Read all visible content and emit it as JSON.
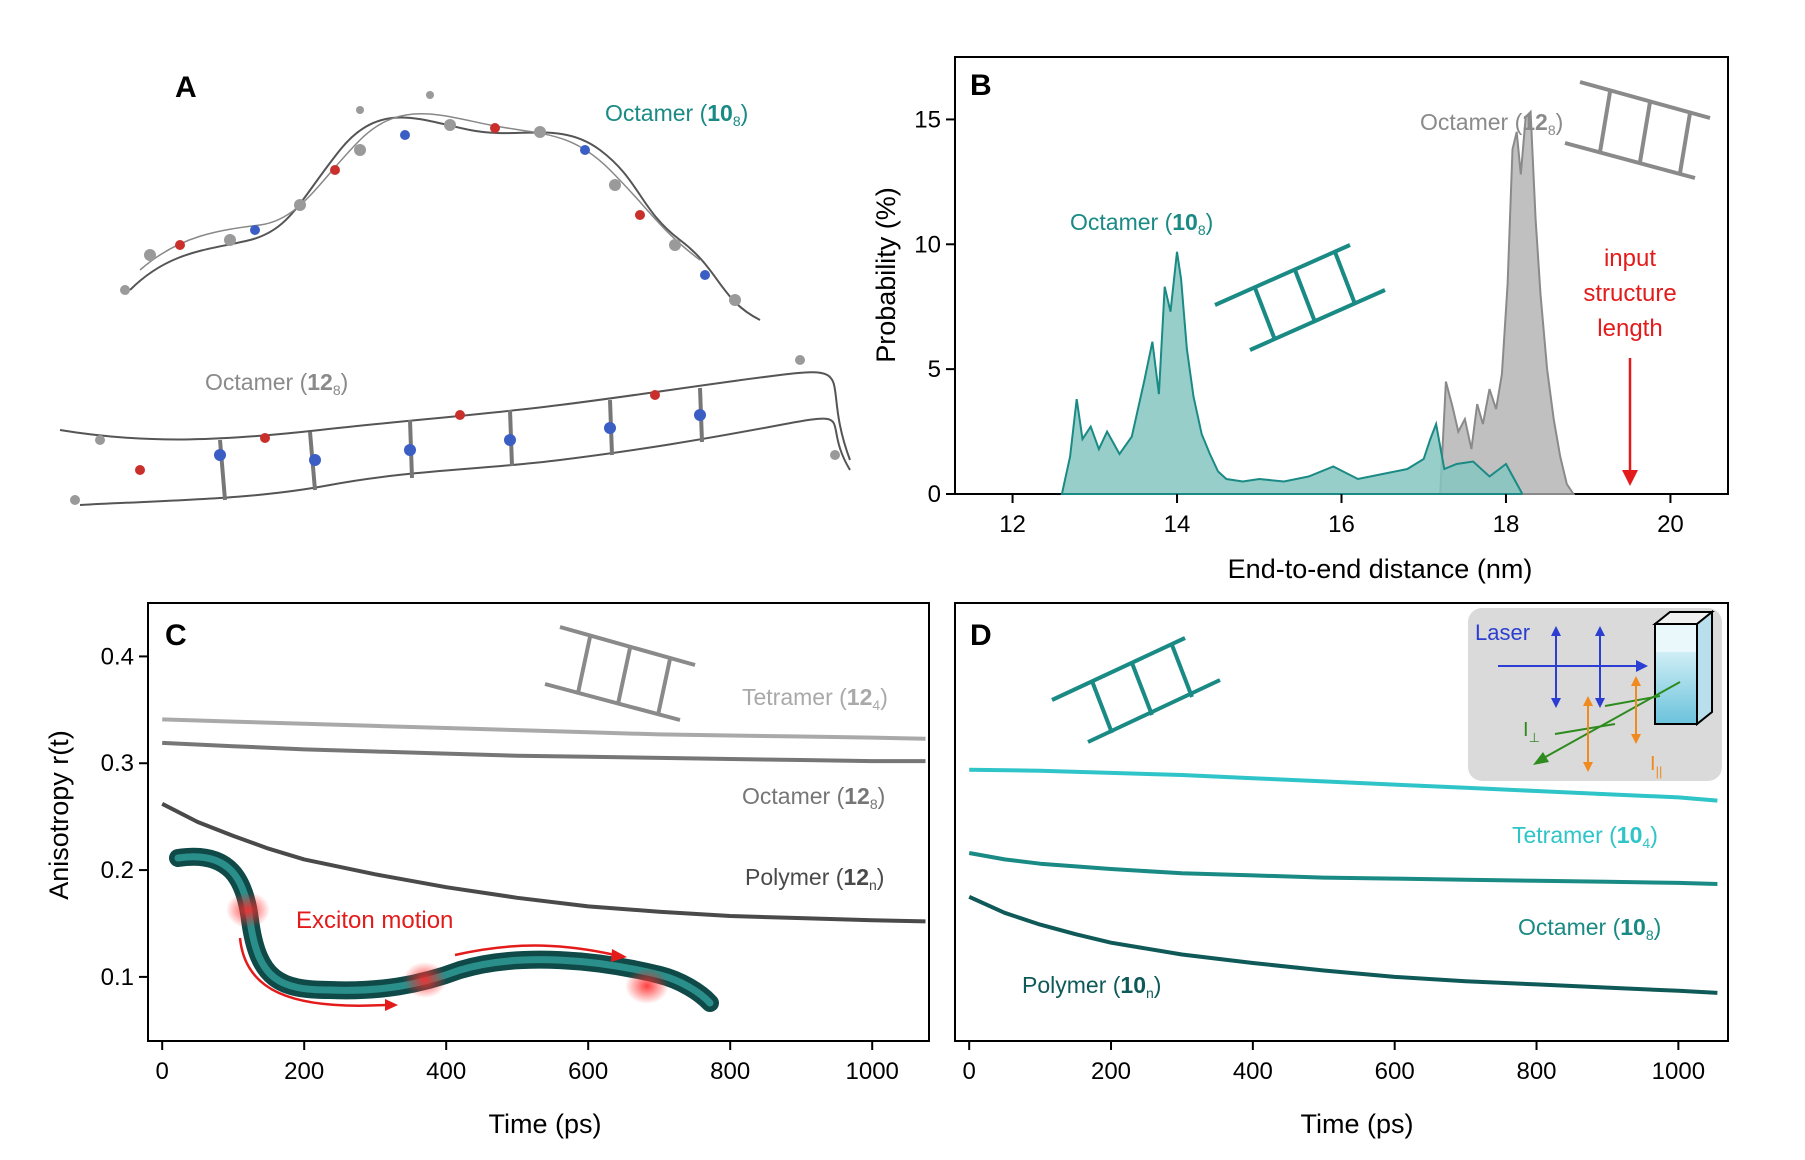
{
  "figure": {
    "panels": {
      "A": "A",
      "B": "B",
      "C": "C",
      "D": "D"
    }
  },
  "colors": {
    "teal": "#1a8a85",
    "teal_fill": "#86c6c0",
    "cyan": "#2ec4c8",
    "dark_teal": "#0f5a58",
    "gray": "#8a8a8a",
    "gray_fill": "#b5b5b5",
    "light_gray": "#a9a9a9",
    "mid_gray": "#767676",
    "dark_gray": "#4a4a4a",
    "red": "#e31b1b",
    "blue": "#2b3ed1",
    "orange": "#f08a1e",
    "green": "#2e8b1e",
    "inset_bg": "#dadada"
  },
  "panel_a": {
    "label_10": {
      "prefix": "Octamer (",
      "bold": "10",
      "sub": "8",
      "suffix": ")"
    },
    "label_12": {
      "prefix": "Octamer (",
      "bold": "12",
      "sub": "8",
      "suffix": ")"
    },
    "molecule_icons": [
      "molecular-structure-10-8",
      "molecular-structure-12-8"
    ]
  },
  "chart_data": [
    {
      "panel": "B",
      "type": "area",
      "xlabel": "End-to-end distance (nm)",
      "ylabel": "Probability (%)",
      "xlim": [
        11.3,
        20.7
      ],
      "ylim": [
        0,
        17.5
      ],
      "xticks": [
        12,
        14,
        16,
        18,
        20
      ],
      "yticks": [
        0,
        5,
        10,
        15
      ],
      "series": [
        {
          "name": "Octamer (10_8)",
          "label": {
            "prefix": "Octamer (",
            "bold": "10",
            "sub": "8",
            "suffix": ")"
          },
          "x": [
            12.6,
            12.7,
            12.78,
            12.85,
            12.95,
            13.05,
            13.15,
            13.3,
            13.45,
            13.6,
            13.7,
            13.78,
            13.85,
            13.92,
            14.0,
            14.05,
            14.12,
            14.2,
            14.3,
            14.4,
            14.5,
            14.6,
            14.8,
            15.0,
            15.3,
            15.6,
            15.9,
            16.2,
            16.5,
            16.8,
            17.0,
            17.08,
            17.15,
            17.25,
            17.4,
            17.6,
            17.8,
            18.0,
            18.1,
            18.2
          ],
          "y": [
            0,
            1.5,
            3.8,
            2.2,
            2.7,
            1.8,
            2.5,
            1.6,
            2.3,
            4.5,
            6.1,
            4.0,
            8.3,
            7.3,
            9.7,
            8.6,
            5.8,
            3.9,
            2.4,
            1.6,
            0.9,
            0.6,
            0.5,
            0.6,
            0.5,
            0.7,
            1.1,
            0.6,
            0.8,
            1.0,
            1.4,
            2.2,
            2.8,
            1.0,
            1.2,
            1.3,
            0.7,
            1.2,
            0.6,
            0
          ]
        },
        {
          "name": "Octamer (12_8)",
          "label": {
            "prefix": "Octamer (",
            "bold": "12",
            "sub": "8",
            "suffix": ")"
          },
          "x": [
            17.2,
            17.27,
            17.35,
            17.42,
            17.5,
            17.58,
            17.65,
            17.72,
            17.8,
            17.88,
            17.95,
            18.02,
            18.08,
            18.13,
            18.18,
            18.24,
            18.3,
            18.36,
            18.42,
            18.5,
            18.58,
            18.66,
            18.74,
            18.82
          ],
          "y": [
            0,
            4.5,
            3.5,
            2.5,
            3.0,
            1.8,
            3.6,
            2.8,
            4.2,
            3.4,
            4.8,
            8.4,
            13.8,
            14.5,
            12.8,
            15.1,
            15.3,
            11.0,
            8.0,
            5.0,
            3.0,
            1.5,
            0.4,
            0
          ]
        }
      ],
      "annotation": {
        "lines": [
          "input",
          "structure",
          "length"
        ],
        "x": 19.5
      }
    },
    {
      "panel": "C",
      "type": "line",
      "xlabel": "Time (ps)",
      "ylabel": "Anisotropy r(t)",
      "xlim": [
        -20,
        1080
      ],
      "ylim": [
        0.04,
        0.45
      ],
      "xticks": [
        0,
        200,
        400,
        600,
        800,
        1000
      ],
      "yticks": [
        0.1,
        0.2,
        0.3,
        0.4
      ],
      "series": [
        {
          "name": "Tetramer (12_4)",
          "label": {
            "prefix": "Tetramer  (",
            "bold": "12",
            "sub": "4",
            "suffix": ")"
          },
          "x": [
            0,
            100,
            200,
            300,
            400,
            500,
            600,
            700,
            800,
            900,
            1000,
            1075
          ],
          "y": [
            0.341,
            0.339,
            0.337,
            0.335,
            0.333,
            0.331,
            0.329,
            0.327,
            0.326,
            0.325,
            0.324,
            0.323
          ]
        },
        {
          "name": "Octamer (12_8)",
          "label": {
            "prefix": "Octamer (",
            "bold": "12",
            "sub": "8",
            "suffix": ")"
          },
          "x": [
            0,
            100,
            200,
            300,
            400,
            500,
            600,
            700,
            800,
            900,
            1000,
            1075
          ],
          "y": [
            0.319,
            0.316,
            0.313,
            0.311,
            0.309,
            0.307,
            0.306,
            0.305,
            0.304,
            0.303,
            0.302,
            0.302
          ]
        },
        {
          "name": "Polymer (12_n)",
          "label": {
            "prefix": "Polymer (",
            "bold": "12",
            "sub": "n",
            "suffix": ")"
          },
          "x": [
            0,
            50,
            100,
            150,
            200,
            300,
            400,
            500,
            600,
            700,
            800,
            900,
            1000,
            1075
          ],
          "y": [
            0.262,
            0.245,
            0.232,
            0.22,
            0.21,
            0.196,
            0.184,
            0.174,
            0.166,
            0.161,
            0.157,
            0.155,
            0.153,
            0.152
          ]
        }
      ],
      "annotation": {
        "text": "Exciton motion"
      }
    },
    {
      "panel": "D",
      "type": "line",
      "xlabel": "Time (ps)",
      "ylabel": "",
      "xlim": [
        -20,
        1070
      ],
      "ylim": [
        0.04,
        0.45
      ],
      "xticks": [
        0,
        200,
        400,
        600,
        800,
        1000
      ],
      "yticks": [],
      "series": [
        {
          "name": "Tetramer (10_4)",
          "label": {
            "prefix": "Tetramer (",
            "bold": "10",
            "sub": "4",
            "suffix": ")"
          },
          "x": [
            0,
            100,
            200,
            300,
            400,
            500,
            600,
            700,
            800,
            900,
            1000,
            1055
          ],
          "y": [
            0.294,
            0.293,
            0.291,
            0.289,
            0.286,
            0.283,
            0.28,
            0.277,
            0.274,
            0.271,
            0.268,
            0.265
          ]
        },
        {
          "name": "Octamer (10_8)",
          "label": {
            "prefix": "Octamer (",
            "bold": "10",
            "sub": "8",
            "suffix": ")"
          },
          "x": [
            0,
            50,
            100,
            200,
            300,
            400,
            500,
            600,
            700,
            800,
            900,
            1000,
            1055
          ],
          "y": [
            0.216,
            0.21,
            0.206,
            0.201,
            0.197,
            0.195,
            0.193,
            0.192,
            0.191,
            0.19,
            0.189,
            0.188,
            0.187
          ]
        },
        {
          "name": "Polymer (10_n)",
          "label": {
            "prefix": "Polymer (",
            "bold": "10",
            "sub": "n",
            "suffix": ")"
          },
          "x": [
            0,
            50,
            100,
            150,
            200,
            300,
            400,
            500,
            600,
            700,
            800,
            900,
            1000,
            1055
          ],
          "y": [
            0.175,
            0.16,
            0.149,
            0.14,
            0.132,
            0.121,
            0.113,
            0.106,
            0.1,
            0.096,
            0.093,
            0.09,
            0.087,
            0.085
          ]
        }
      ],
      "inset": {
        "laser": "Laser",
        "i_perp": "I",
        "i_perp_sub": "⊥",
        "i_par": "I",
        "i_par_sub": "||"
      }
    }
  ]
}
